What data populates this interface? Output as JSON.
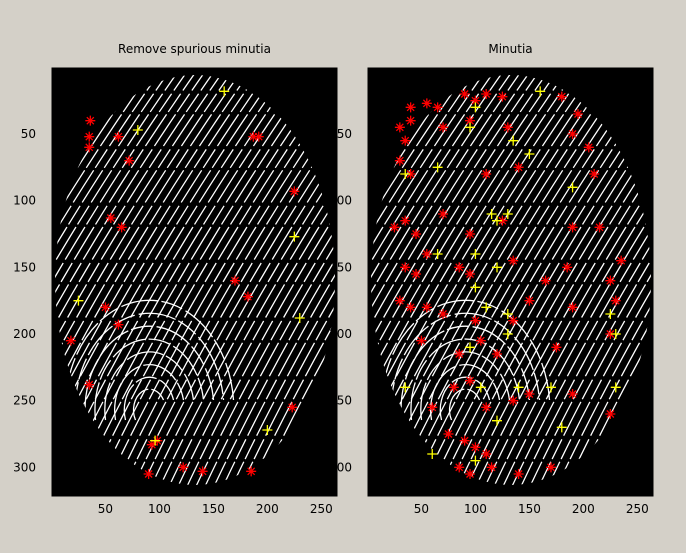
{
  "chart_data": [
    {
      "type": "scatter",
      "title": "Remove spurious minutia",
      "xlim": [
        0.5,
        264.5
      ],
      "ylim": [
        0.5,
        321.5
      ],
      "y_reversed": true,
      "xticks": [
        50,
        100,
        150,
        200,
        250
      ],
      "yticks": [
        50,
        100,
        150,
        200,
        250,
        300
      ],
      "series": [
        {
          "color": "#ff0000",
          "marker": "asterisk",
          "values": [
            [
              36,
              40
            ],
            [
              35,
              52
            ],
            [
              35,
              60
            ],
            [
              62,
              52
            ],
            [
              72,
              70
            ],
            [
              187,
              52
            ],
            [
              192,
              52
            ],
            [
              225,
              93
            ],
            [
              55,
              113
            ],
            [
              65,
              120
            ],
            [
              170,
              160
            ],
            [
              182,
              172
            ],
            [
              50,
              180
            ],
            [
              62,
              193
            ],
            [
              18,
              205
            ],
            [
              35,
              238
            ],
            [
              223,
              255
            ],
            [
              93,
              283
            ],
            [
              98,
              280
            ],
            [
              122,
              300
            ],
            [
              140,
              303
            ],
            [
              90,
              305
            ],
            [
              185,
              303
            ]
          ]
        },
        {
          "color": "#ffff00",
          "marker": "plus",
          "values": [
            [
              160,
              18
            ],
            [
              80,
              47
            ],
            [
              225,
              127
            ],
            [
              25,
              175
            ],
            [
              230,
              188
            ],
            [
              200,
              272
            ],
            [
              96,
              280
            ]
          ]
        }
      ]
    },
    {
      "type": "scatter",
      "title": "Minutia",
      "xlim": [
        0.5,
        264.5
      ],
      "ylim": [
        0.5,
        321.5
      ],
      "y_reversed": true,
      "xticks": [
        50,
        100,
        150,
        200,
        250
      ],
      "yticks": [
        50,
        100,
        150,
        200,
        250,
        300
      ],
      "series": [
        {
          "color": "#ff0000",
          "marker": "asterisk",
          "values": [
            [
              40,
              30
            ],
            [
              55,
              27
            ],
            [
              65,
              30
            ],
            [
              90,
              20
            ],
            [
              100,
              25
            ],
            [
              110,
              20
            ],
            [
              125,
              22
            ],
            [
              180,
              22
            ],
            [
              195,
              35
            ],
            [
              30,
              45
            ],
            [
              35,
              55
            ],
            [
              40,
              40
            ],
            [
              70,
              45
            ],
            [
              95,
              40
            ],
            [
              130,
              45
            ],
            [
              190,
              50
            ],
            [
              205,
              60
            ],
            [
              30,
              70
            ],
            [
              40,
              80
            ],
            [
              110,
              80
            ],
            [
              140,
              75
            ],
            [
              210,
              80
            ],
            [
              25,
              120
            ],
            [
              35,
              115
            ],
            [
              45,
              125
            ],
            [
              70,
              110
            ],
            [
              95,
              125
            ],
            [
              125,
              115
            ],
            [
              190,
              120
            ],
            [
              215,
              120
            ],
            [
              35,
              150
            ],
            [
              45,
              155
            ],
            [
              55,
              140
            ],
            [
              85,
              150
            ],
            [
              95,
              155
            ],
            [
              135,
              145
            ],
            [
              165,
              160
            ],
            [
              185,
              150
            ],
            [
              225,
              160
            ],
            [
              235,
              145
            ],
            [
              30,
              175
            ],
            [
              40,
              180
            ],
            [
              55,
              180
            ],
            [
              70,
              185
            ],
            [
              100,
              190
            ],
            [
              135,
              190
            ],
            [
              150,
              175
            ],
            [
              190,
              180
            ],
            [
              230,
              175
            ],
            [
              225,
              200
            ],
            [
              50,
              205
            ],
            [
              85,
              215
            ],
            [
              105,
              205
            ],
            [
              120,
              215
            ],
            [
              175,
              210
            ],
            [
              80,
              240
            ],
            [
              95,
              235
            ],
            [
              110,
              255
            ],
            [
              135,
              250
            ],
            [
              150,
              245
            ],
            [
              190,
              245
            ],
            [
              90,
              280
            ],
            [
              100,
              285
            ],
            [
              110,
              290
            ],
            [
              85,
              300
            ],
            [
              95,
              305
            ],
            [
              115,
              300
            ],
            [
              140,
              305
            ],
            [
              170,
              300
            ],
            [
              225,
              260
            ],
            [
              60,
              255
            ],
            [
              75,
              275
            ]
          ]
        },
        {
          "color": "#ffff00",
          "marker": "plus",
          "values": [
            [
              160,
              18
            ],
            [
              100,
              30
            ],
            [
              95,
              45
            ],
            [
              135,
              55
            ],
            [
              150,
              65
            ],
            [
              35,
              80
            ],
            [
              65,
              75
            ],
            [
              190,
              90
            ],
            [
              115,
              110
            ],
            [
              130,
              110
            ],
            [
              120,
              115
            ],
            [
              65,
              140
            ],
            [
              100,
              140
            ],
            [
              120,
              150
            ],
            [
              100,
              165
            ],
            [
              110,
              180
            ],
            [
              130,
              185
            ],
            [
              130,
              200
            ],
            [
              95,
              210
            ],
            [
              35,
              240
            ],
            [
              105,
              240
            ],
            [
              140,
              240
            ],
            [
              170,
              240
            ],
            [
              225,
              185
            ],
            [
              230,
              200
            ],
            [
              230,
              240
            ],
            [
              120,
              265
            ],
            [
              180,
              270
            ],
            [
              60,
              290
            ],
            [
              100,
              295
            ]
          ]
        }
      ]
    }
  ]
}
